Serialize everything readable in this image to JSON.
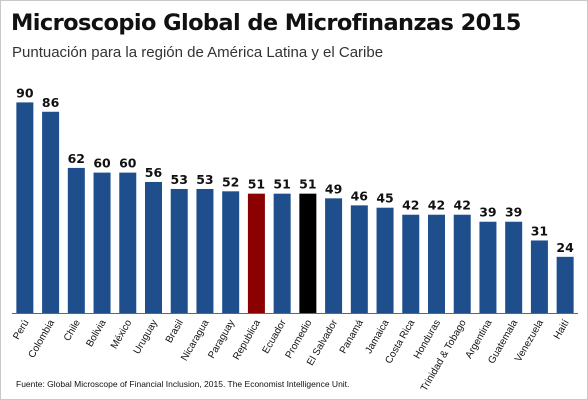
{
  "title": "Microscopio Global de Microfinanzas 2015",
  "subtitle": "Puntuación para la región de América Latina y el Caribe",
  "source": "Fuente: Global Microscope of Financial Inclusion, 2015. The Economist Intelligence Unit.",
  "colors": {
    "default_bar": "#1f4e8c",
    "highlight_bar": "#8b0000",
    "average_bar": "#000000",
    "axis": "#666666"
  },
  "chart_data": {
    "type": "bar",
    "title": "Microscopio Global de Microfinanzas 2015",
    "subtitle": "Puntuación para la región de América Latina y el Caribe",
    "xlabel": "",
    "ylabel": "",
    "ylim": [
      0,
      100
    ],
    "grid": false,
    "legend": "none",
    "categories": [
      "Perú",
      "Colombia",
      "Chile",
      "Bolivia",
      "México",
      "Uruguay",
      "Brasil",
      "Nicaragua",
      "Paraguay",
      "Republica",
      "Ecuador",
      "Promedio",
      "El Salvador",
      "Panamá",
      "Jamaica",
      "Costa Rica",
      "Honduras",
      "Trinidad & Tobago",
      "Argentina",
      "Guatemala",
      "Venezuela",
      "Haití"
    ],
    "values": [
      90,
      86,
      62,
      60,
      60,
      56,
      53,
      53,
      52,
      51,
      51,
      51,
      49,
      46,
      45,
      42,
      42,
      42,
      39,
      39,
      31,
      24
    ],
    "bar_colors": [
      "#1f4e8c",
      "#1f4e8c",
      "#1f4e8c",
      "#1f4e8c",
      "#1f4e8c",
      "#1f4e8c",
      "#1f4e8c",
      "#1f4e8c",
      "#1f4e8c",
      "#8b0000",
      "#1f4e8c",
      "#000000",
      "#1f4e8c",
      "#1f4e8c",
      "#1f4e8c",
      "#1f4e8c",
      "#1f4e8c",
      "#1f4e8c",
      "#1f4e8c",
      "#1f4e8c",
      "#1f4e8c",
      "#1f4e8c"
    ]
  }
}
